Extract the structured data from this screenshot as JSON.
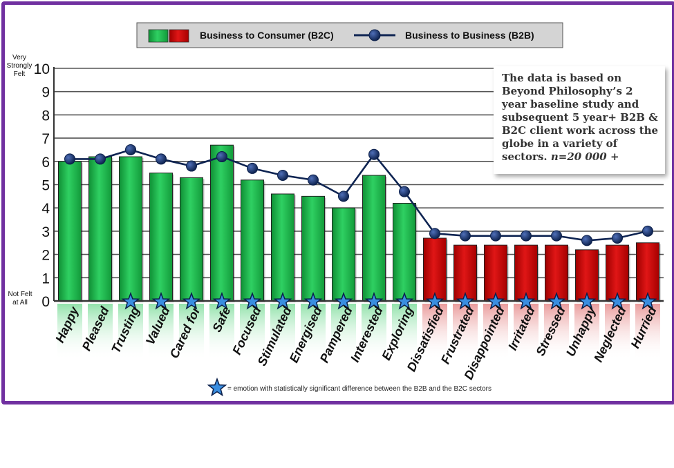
{
  "chart_data": {
    "type": "bar",
    "categories": [
      "Happy",
      "Pleased",
      "Trusting",
      "Valued",
      "Cared for",
      "Safe",
      "Focused",
      "Stimulated",
      "Energised",
      "Pampered",
      "Interested",
      "Exploring",
      "Dissatisfied",
      "Frustrated",
      "Disappointed",
      "Irritated",
      "Stressed",
      "Unhappy",
      "Neglected",
      "Hurried"
    ],
    "series": [
      {
        "name": "Business to Consumer  (B2C)",
        "type": "bar",
        "values": [
          6.0,
          6.2,
          6.2,
          5.5,
          5.3,
          6.7,
          5.2,
          4.6,
          4.5,
          4.0,
          5.4,
          4.2,
          2.7,
          2.4,
          2.4,
          2.4,
          2.4,
          2.2,
          2.4,
          2.5
        ]
      },
      {
        "name": "Business to Business (B2B)",
        "type": "line",
        "values": [
          6.1,
          6.1,
          6.5,
          6.1,
          5.8,
          6.2,
          5.7,
          5.4,
          5.2,
          4.5,
          6.3,
          4.7,
          2.9,
          2.8,
          2.8,
          2.8,
          2.8,
          2.6,
          2.7,
          3.0
        ]
      }
    ],
    "significant": [
      false,
      false,
      true,
      true,
      true,
      true,
      true,
      true,
      true,
      true,
      true,
      true,
      true,
      true,
      true,
      true,
      true,
      true,
      true,
      true
    ],
    "positive_count": 12,
    "ylim": [
      0,
      10
    ],
    "yticks": [
      "0",
      "1",
      "2",
      "3",
      "4",
      "5",
      "6",
      "7",
      "8",
      "9",
      "10"
    ],
    "ylabel_top": [
      "Very",
      "Strongly",
      "Felt"
    ],
    "ylabel_bottom": [
      "Not Felt",
      "at All"
    ],
    "grid": true,
    "legend_position": "top",
    "colors": {
      "positive": "#1fb84c",
      "negative": "#cc0000",
      "line": "#0e2452",
      "star": "#3a8ee0",
      "frame": "#7030a0"
    }
  },
  "note": {
    "text": "The data is based on Beyond Philosophy’s 2 year baseline study and subsequent 5 year+ B2B & B2C client work across the globe in a variety of sectors.",
    "n_value": "n=20 000 +"
  },
  "footnote": "= emotion with statistically significant difference between the B2B and the B2C sectors"
}
